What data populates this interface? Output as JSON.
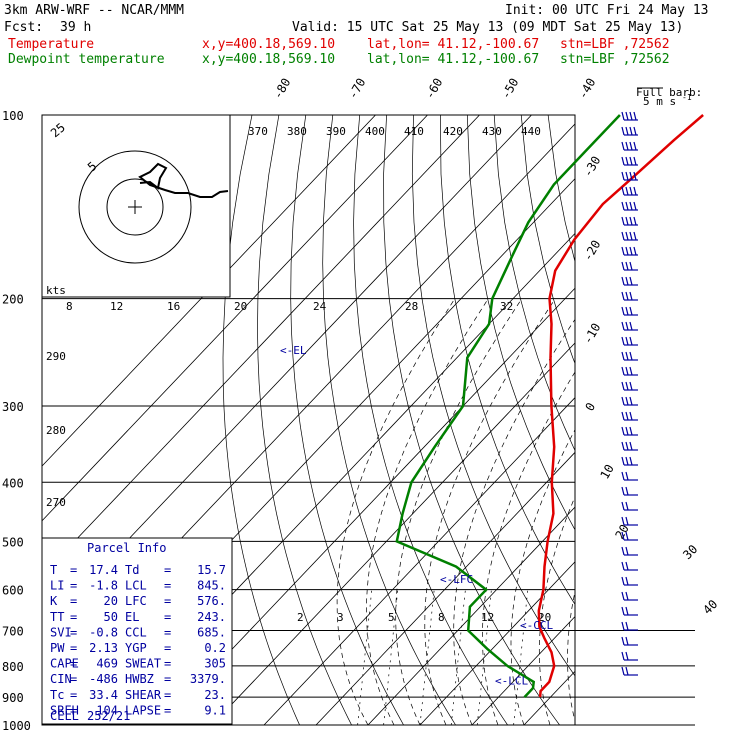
{
  "header": {
    "model": "3km ARW-WRF -- NCAR/MMM",
    "init": "Init: 00 UTC Fri 24 May 13",
    "fcst_label": "Fcst:",
    "fcst_value": "39 h",
    "valid": "Valid: 15 UTC Sat 25 May 13 (09 MDT Sat 25 May 13)",
    "temp_line": {
      "name": "Temperature",
      "xy": "x,y=400.18,569.10",
      "latlon": "lat,lon= 41.12,-100.67",
      "stn": "stn=LBF ,72562"
    },
    "dew_line": {
      "name": "Dewpoint temperature",
      "xy": "x,y=400.18,569.10",
      "latlon": "lat,lon= 41.12,-100.67",
      "stn": "stn=LBF ,72562"
    }
  },
  "barb_legend": {
    "title": "Full barb:",
    "value": "5 m s",
    "unit_sup": "-1"
  },
  "colors": {
    "temperature": "#e00000",
    "dewpoint": "#008000",
    "barbs": "#0000a0",
    "grid": "#000000"
  },
  "chart_data": {
    "type": "skew-t",
    "pressure_axis": {
      "levels": [
        100,
        200,
        300,
        400,
        500,
        600,
        700,
        800,
        900,
        1000
      ],
      "log_scale": true
    },
    "isotherm_labels": [
      "-80",
      "-70",
      "-60",
      "-50",
      "-40",
      "-30",
      "-20",
      "-10",
      "0",
      "10",
      "20",
      "30",
      "40"
    ],
    "theta_labels_top": [
      "370",
      "380",
      "390",
      "400",
      "410",
      "420",
      "430",
      "440"
    ],
    "theta_labels_left": [
      "290",
      "280",
      "270"
    ],
    "hodograph_axis_labels": [
      "8",
      "12",
      "16",
      "20",
      "24",
      "28",
      "32"
    ],
    "hodograph_units": "kts",
    "hodograph_rings": [
      "25",
      "5"
    ],
    "mixing_ratio_labels": [
      "2",
      "3",
      "5",
      "8",
      "12",
      "20"
    ],
    "level_markers": [
      {
        "label": "<-EL",
        "pressure": 243
      },
      {
        "label": "<-LFC",
        "pressure": 576
      },
      {
        "label": "<-CCL",
        "pressure": 685
      },
      {
        "label": "<-LCL",
        "pressure": 845
      }
    ],
    "temperature": [
      {
        "p": 900,
        "t": 18
      },
      {
        "p": 880,
        "t": 17
      },
      {
        "p": 850,
        "t": 17
      },
      {
        "p": 800,
        "t": 15
      },
      {
        "p": 760,
        "t": 12
      },
      {
        "p": 720,
        "t": 8
      },
      {
        "p": 690,
        "t": 5
      },
      {
        "p": 650,
        "t": 2
      },
      {
        "p": 600,
        "t": -1
      },
      {
        "p": 550,
        "t": -5
      },
      {
        "p": 500,
        "t": -9
      },
      {
        "p": 450,
        "t": -13
      },
      {
        "p": 400,
        "t": -19
      },
      {
        "p": 350,
        "t": -25
      },
      {
        "p": 300,
        "t": -33
      },
      {
        "p": 250,
        "t": -42
      },
      {
        "p": 220,
        "t": -48
      },
      {
        "p": 200,
        "t": -53
      },
      {
        "p": 180,
        "t": -57
      },
      {
        "p": 160,
        "t": -59
      },
      {
        "p": 140,
        "t": -60
      },
      {
        "p": 125,
        "t": -59
      },
      {
        "p": 110,
        "t": -58
      },
      {
        "p": 100,
        "t": -57
      }
    ],
    "dewpoint": [
      {
        "p": 900,
        "t": 15
      },
      {
        "p": 870,
        "t": 15
      },
      {
        "p": 850,
        "t": 14
      },
      {
        "p": 800,
        "t": 6
      },
      {
        "p": 750,
        "t": -1
      },
      {
        "p": 700,
        "t": -8
      },
      {
        "p": 640,
        "t": -12
      },
      {
        "p": 600,
        "t": -12
      },
      {
        "p": 550,
        "t": -22
      },
      {
        "p": 500,
        "t": -38
      },
      {
        "p": 450,
        "t": -42
      },
      {
        "p": 400,
        "t": -46
      },
      {
        "p": 350,
        "t": -48
      },
      {
        "p": 300,
        "t": -50
      },
      {
        "p": 250,
        "t": -58
      },
      {
        "p": 220,
        "t": -60
      },
      {
        "p": 200,
        "t": -64
      },
      {
        "p": 170,
        "t": -68
      },
      {
        "p": 150,
        "t": -71
      },
      {
        "p": 130,
        "t": -73
      },
      {
        "p": 115,
        "t": -73
      },
      {
        "p": 100,
        "t": -73
      }
    ]
  },
  "parcel_info": {
    "title": "Parcel Info",
    "rows": [
      {
        "l1": "T",
        "v1": "17.4",
        "l2": "Td",
        "v2": "15.7"
      },
      {
        "l1": "LI",
        "v1": "-1.8",
        "l2": "LCL",
        "v2": "845."
      },
      {
        "l1": "K",
        "v1": "20",
        "l2": "LFC",
        "v2": "576."
      },
      {
        "l1": "TT",
        "v1": "50",
        "l2": "EL",
        "v2": "243."
      },
      {
        "l1": "SVI",
        "v1": "-0.8",
        "l2": "CCL",
        "v2": "685."
      },
      {
        "l1": "PW",
        "v1": "2.13",
        "l2": "YGP",
        "v2": "0.2"
      },
      {
        "l1": "CAPE",
        "v1": "469",
        "l2": "SWEAT",
        "v2": "305"
      },
      {
        "l1": "CIN",
        "v1": "-486",
        "l2": "HWBZ",
        "v2": "3379."
      },
      {
        "l1": "Tc",
        "v1": "33.4",
        "l2": "SHEAR",
        "v2": "23."
      },
      {
        "l1": "SREH",
        "v1": "104",
        "l2": "LAPSE",
        "v2": "9.1"
      }
    ],
    "cell_label": "CELL",
    "cell_value": "252/21"
  }
}
